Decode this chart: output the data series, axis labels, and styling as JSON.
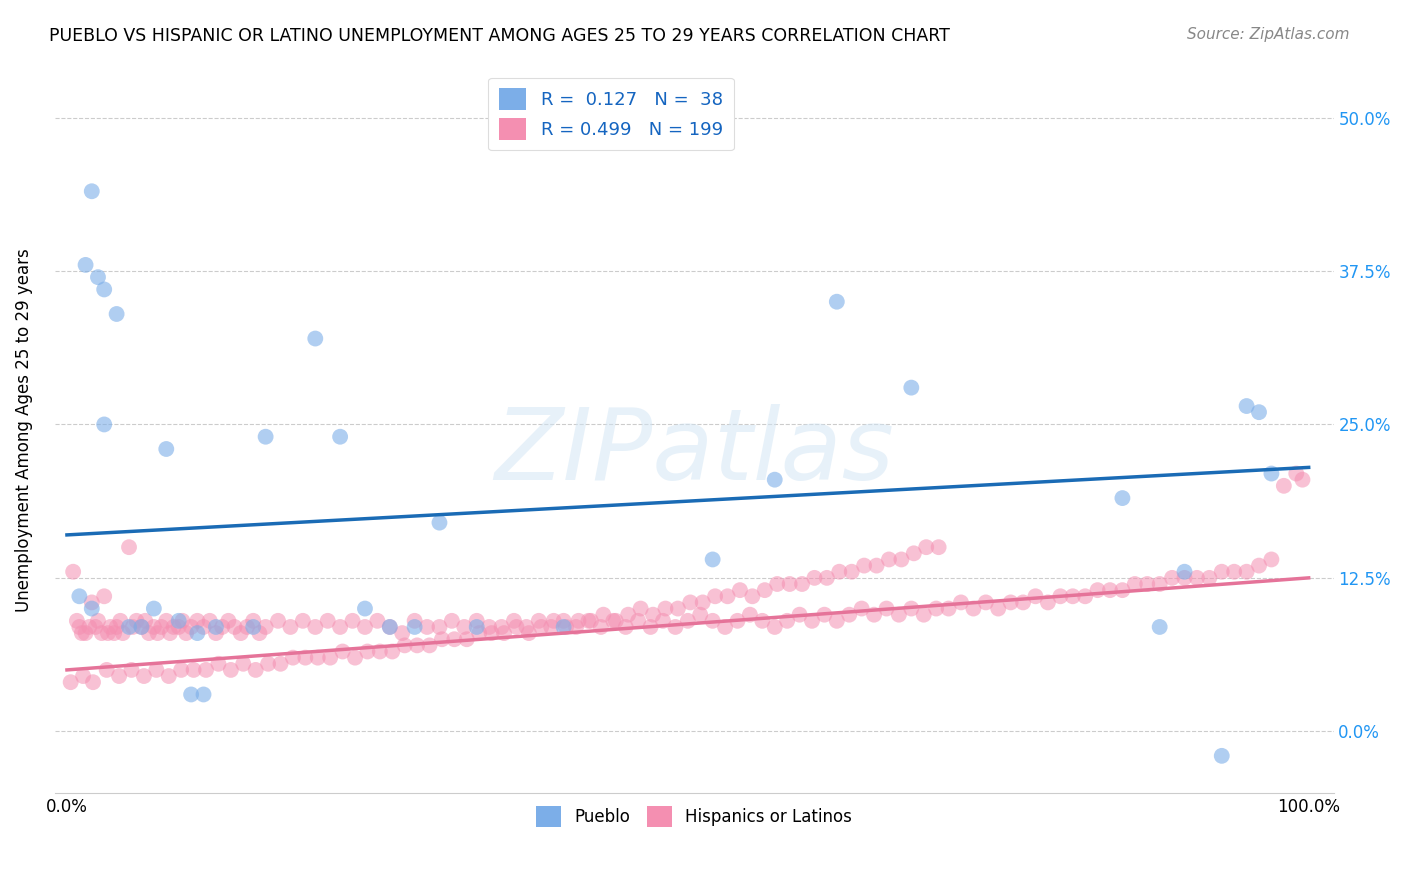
{
  "title": "PUEBLO VS HISPANIC OR LATINO UNEMPLOYMENT AMONG AGES 25 TO 29 YEARS CORRELATION CHART",
  "source": "Source: ZipAtlas.com",
  "ylabel": "Unemployment Among Ages 25 to 29 years",
  "ytick_values": [
    0.0,
    12.5,
    25.0,
    37.5,
    50.0
  ],
  "xlim": [
    -1,
    102
  ],
  "ylim": [
    -5,
    54
  ],
  "watermark_text": "ZIPatlas",
  "legend_pueblo_R": "0.127",
  "legend_pueblo_N": "38",
  "legend_hispanic_R": "0.499",
  "legend_hispanic_N": "199",
  "pueblo_color": "#7caee8",
  "hispanic_color": "#f48fb1",
  "pueblo_line_color": "#1a6bb5",
  "hispanic_line_color": "#e57399",
  "background_color": "#ffffff",
  "grid_color": "#cccccc",
  "pueblo_trend_x0": 0,
  "pueblo_trend_x1": 100,
  "pueblo_trend_y0": 16.0,
  "pueblo_trend_y1": 21.5,
  "hispanic_trend_x0": 0,
  "hispanic_trend_x1": 100,
  "hispanic_trend_y0": 5.0,
  "hispanic_trend_y1": 12.5,
  "pueblo_x": [
    1.5,
    2.0,
    2.5,
    3.0,
    4.0,
    1.0,
    2.0,
    3.0,
    5.0,
    6.0,
    7.0,
    8.0,
    9.0,
    10.0,
    10.5,
    11.0,
    12.0,
    15.0,
    16.0,
    20.0,
    22.0,
    24.0,
    26.0,
    28.0,
    30.0,
    33.0,
    40.0,
    52.0,
    57.0,
    62.0,
    68.0,
    85.0,
    88.0,
    90.0,
    93.0,
    95.0,
    96.0,
    97.0
  ],
  "pueblo_y": [
    38.0,
    44.0,
    37.0,
    36.0,
    34.0,
    11.0,
    10.0,
    25.0,
    8.5,
    8.5,
    10.0,
    23.0,
    9.0,
    3.0,
    8.0,
    3.0,
    8.5,
    8.5,
    24.0,
    32.0,
    24.0,
    10.0,
    8.5,
    8.5,
    17.0,
    8.5,
    8.5,
    14.0,
    20.5,
    35.0,
    28.0,
    19.0,
    8.5,
    13.0,
    -2.0,
    26.5,
    26.0,
    21.0
  ],
  "hispanic_x": [
    0.5,
    0.8,
    1.0,
    1.2,
    1.5,
    1.8,
    2.0,
    2.3,
    2.5,
    2.8,
    3.0,
    3.3,
    3.5,
    3.8,
    4.0,
    4.3,
    4.5,
    5.0,
    5.3,
    5.6,
    6.0,
    6.3,
    6.6,
    7.0,
    7.3,
    7.6,
    8.0,
    8.3,
    8.6,
    9.0,
    9.3,
    9.6,
    10.0,
    10.5,
    11.0,
    11.5,
    12.0,
    12.5,
    13.0,
    13.5,
    14.0,
    14.5,
    15.0,
    15.5,
    16.0,
    17.0,
    18.0,
    19.0,
    20.0,
    21.0,
    22.0,
    23.0,
    24.0,
    25.0,
    26.0,
    27.0,
    28.0,
    29.0,
    30.0,
    31.0,
    32.0,
    33.0,
    34.0,
    35.0,
    36.0,
    37.0,
    38.0,
    39.0,
    40.0,
    41.0,
    42.0,
    43.0,
    44.0,
    45.0,
    46.0,
    47.0,
    48.0,
    49.0,
    50.0,
    51.0,
    52.0,
    53.0,
    54.0,
    55.0,
    56.0,
    57.0,
    58.0,
    59.0,
    60.0,
    61.0,
    62.0,
    63.0,
    64.0,
    65.0,
    66.0,
    67.0,
    68.0,
    69.0,
    70.0,
    71.0,
    72.0,
    73.0,
    74.0,
    75.0,
    76.0,
    77.0,
    78.0,
    79.0,
    80.0,
    81.0,
    82.0,
    83.0,
    84.0,
    85.0,
    86.0,
    87.0,
    88.0,
    89.0,
    90.0,
    91.0,
    92.0,
    93.0,
    94.0,
    95.0,
    96.0,
    97.0,
    98.0,
    99.0,
    99.5,
    0.3,
    1.3,
    2.1,
    3.2,
    4.2,
    5.2,
    6.2,
    7.2,
    8.2,
    9.2,
    10.2,
    11.2,
    12.2,
    13.2,
    14.2,
    15.2,
    16.2,
    17.2,
    18.2,
    19.2,
    20.2,
    21.2,
    22.2,
    23.2,
    24.2,
    25.2,
    26.2,
    27.2,
    28.2,
    29.2,
    30.2,
    31.2,
    32.2,
    33.2,
    34.2,
    35.2,
    36.2,
    37.2,
    38.2,
    39.2,
    40.2,
    41.2,
    42.2,
    43.2,
    44.2,
    45.2,
    46.2,
    47.2,
    48.2,
    49.2,
    50.2,
    51.2,
    52.2,
    53.2,
    54.2,
    55.2,
    56.2,
    57.2,
    58.2,
    59.2,
    60.2,
    61.2,
    62.2,
    63.2,
    64.2,
    65.2,
    66.2,
    67.2,
    68.2,
    69.2,
    70.2
  ],
  "hispanic_y": [
    13.0,
    9.0,
    8.5,
    8.0,
    8.0,
    8.5,
    10.5,
    8.5,
    9.0,
    8.0,
    11.0,
    8.0,
    8.5,
    8.0,
    8.5,
    9.0,
    8.0,
    15.0,
    8.5,
    9.0,
    8.5,
    9.0,
    8.0,
    8.5,
    8.0,
    8.5,
    9.0,
    8.0,
    8.5,
    8.5,
    9.0,
    8.0,
    8.5,
    9.0,
    8.5,
    9.0,
    8.0,
    8.5,
    9.0,
    8.5,
    8.0,
    8.5,
    9.0,
    8.0,
    8.5,
    9.0,
    8.5,
    9.0,
    8.5,
    9.0,
    8.5,
    9.0,
    8.5,
    9.0,
    8.5,
    8.0,
    9.0,
    8.5,
    8.5,
    9.0,
    8.5,
    9.0,
    8.5,
    8.5,
    9.0,
    8.5,
    9.0,
    8.5,
    9.0,
    8.5,
    9.0,
    8.5,
    9.0,
    8.5,
    9.0,
    8.5,
    9.0,
    8.5,
    9.0,
    9.5,
    9.0,
    8.5,
    9.0,
    9.5,
    9.0,
    8.5,
    9.0,
    9.5,
    9.0,
    9.5,
    9.0,
    9.5,
    10.0,
    9.5,
    10.0,
    9.5,
    10.0,
    9.5,
    10.0,
    10.0,
    10.5,
    10.0,
    10.5,
    10.0,
    10.5,
    10.5,
    11.0,
    10.5,
    11.0,
    11.0,
    11.0,
    11.5,
    11.5,
    11.5,
    12.0,
    12.0,
    12.0,
    12.5,
    12.5,
    12.5,
    12.5,
    13.0,
    13.0,
    13.0,
    13.5,
    14.0,
    20.0,
    21.0,
    20.5,
    4.0,
    4.5,
    4.0,
    5.0,
    4.5,
    5.0,
    4.5,
    5.0,
    4.5,
    5.0,
    5.0,
    5.0,
    5.5,
    5.0,
    5.5,
    5.0,
    5.5,
    5.5,
    6.0,
    6.0,
    6.0,
    6.0,
    6.5,
    6.0,
    6.5,
    6.5,
    6.5,
    7.0,
    7.0,
    7.0,
    7.5,
    7.5,
    7.5,
    8.0,
    8.0,
    8.0,
    8.5,
    8.0,
    8.5,
    9.0,
    8.5,
    9.0,
    9.0,
    9.5,
    9.0,
    9.5,
    10.0,
    9.5,
    10.0,
    10.0,
    10.5,
    10.5,
    11.0,
    11.0,
    11.5,
    11.0,
    11.5,
    12.0,
    12.0,
    12.0,
    12.5,
    12.5,
    13.0,
    13.0,
    13.5,
    13.5,
    14.0,
    14.0,
    14.5,
    15.0,
    15.0
  ]
}
